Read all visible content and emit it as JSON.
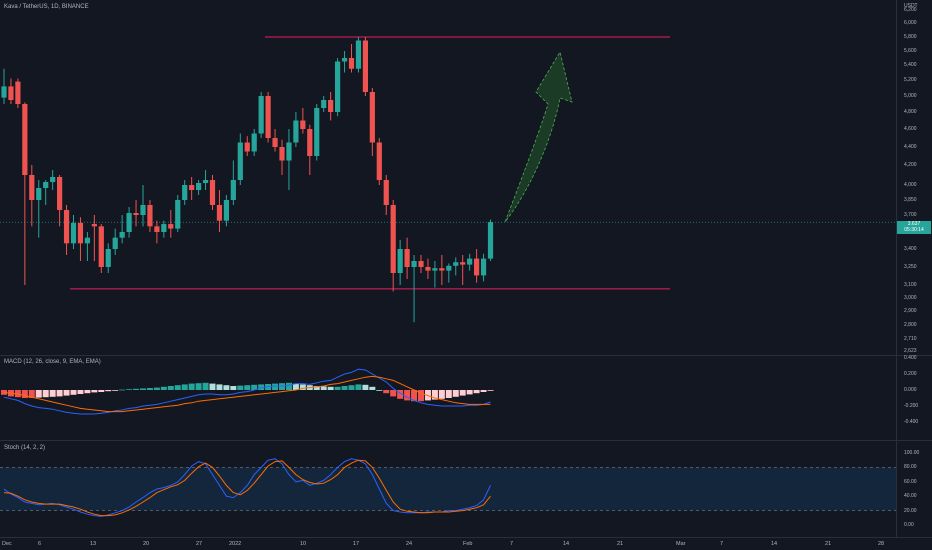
{
  "header": {
    "symbol_title": "Kava / TetherUS, 1D, BINANCE",
    "currency": "USDT"
  },
  "price_axis": {
    "labels": [
      "6,200",
      "6,000",
      "5,800",
      "5,600",
      "5,400",
      "5,200",
      "5,000",
      "4,800",
      "4,600",
      "4,400",
      "4,200",
      "4,000",
      "3,850",
      "3,700",
      "3,550",
      "3,400",
      "3,250",
      "3,100",
      "3,000",
      "2,900",
      "2,800",
      "2,710",
      "2,623"
    ]
  },
  "last_price": {
    "value": "3.637",
    "countdown": "05:30:14"
  },
  "macd": {
    "title": "MACD (12, 26, close, 9, EMA, EMA)",
    "axis_labels": [
      "0.400",
      "0.200",
      "0.000",
      "-0.200",
      "-0.400"
    ]
  },
  "stoch": {
    "title": "Stoch (14, 2, 2)",
    "axis_labels": [
      "100.00",
      "80.00",
      "60.00",
      "40.00",
      "20.00",
      "0.00"
    ]
  },
  "time_axis": {
    "labels": [
      "Dec",
      "6",
      "13",
      "20",
      "27",
      "2022",
      "10",
      "17",
      "24",
      "Feb",
      "7",
      "14",
      "21",
      "Mar",
      "7",
      "14",
      "21",
      "28"
    ]
  },
  "colors": {
    "up": "#26a69a",
    "down": "#ef5350",
    "background": "#131722",
    "resistance_line": "#e91e63",
    "arrow": "#2e7d32"
  },
  "chart_data": {
    "type": "candlestick",
    "title": "Kava / TetherUS, 1D, BINANCE",
    "resistance_level": 5.8,
    "support_level": 3.07,
    "candles": [
      {
        "o": 4.98,
        "h": 5.35,
        "l": 4.9,
        "c": 5.12
      },
      {
        "o": 5.12,
        "h": 5.22,
        "l": 4.9,
        "c": 4.95
      },
      {
        "o": 5.18,
        "h": 5.22,
        "l": 4.85,
        "c": 4.9
      },
      {
        "o": 4.9,
        "h": 4.92,
        "l": 3.1,
        "c": 4.1
      },
      {
        "o": 4.1,
        "h": 4.2,
        "l": 3.6,
        "c": 3.85
      },
      {
        "o": 3.85,
        "h": 4.05,
        "l": 3.5,
        "c": 3.97
      },
      {
        "o": 3.97,
        "h": 4.05,
        "l": 3.8,
        "c": 4.03
      },
      {
        "o": 4.03,
        "h": 4.15,
        "l": 3.95,
        "c": 4.08
      },
      {
        "o": 4.08,
        "h": 4.1,
        "l": 3.6,
        "c": 3.75
      },
      {
        "o": 3.75,
        "h": 3.8,
        "l": 3.35,
        "c": 3.45
      },
      {
        "o": 3.45,
        "h": 3.7,
        "l": 3.4,
        "c": 3.63
      },
      {
        "o": 3.63,
        "h": 3.68,
        "l": 3.3,
        "c": 3.45
      },
      {
        "o": 3.45,
        "h": 3.55,
        "l": 3.3,
        "c": 3.5
      },
      {
        "o": 3.62,
        "h": 3.7,
        "l": 3.3,
        "c": 3.6
      },
      {
        "o": 3.6,
        "h": 3.62,
        "l": 3.2,
        "c": 3.25
      },
      {
        "o": 3.25,
        "h": 3.45,
        "l": 3.2,
        "c": 3.4
      },
      {
        "o": 3.4,
        "h": 3.58,
        "l": 3.35,
        "c": 3.5
      },
      {
        "o": 3.5,
        "h": 3.7,
        "l": 3.45,
        "c": 3.55
      },
      {
        "o": 3.55,
        "h": 3.78,
        "l": 3.5,
        "c": 3.72
      },
      {
        "o": 3.72,
        "h": 3.85,
        "l": 3.6,
        "c": 3.7
      },
      {
        "o": 3.7,
        "h": 4.0,
        "l": 3.6,
        "c": 3.8
      },
      {
        "o": 3.8,
        "h": 3.85,
        "l": 3.55,
        "c": 3.6
      },
      {
        "o": 3.6,
        "h": 3.65,
        "l": 3.45,
        "c": 3.55
      },
      {
        "o": 3.55,
        "h": 3.65,
        "l": 3.5,
        "c": 3.62
      },
      {
        "o": 3.62,
        "h": 3.75,
        "l": 3.5,
        "c": 3.58
      },
      {
        "o": 3.58,
        "h": 3.9,
        "l": 3.55,
        "c": 3.85
      },
      {
        "o": 3.85,
        "h": 4.05,
        "l": 3.8,
        "c": 4.0
      },
      {
        "o": 4.0,
        "h": 4.08,
        "l": 3.85,
        "c": 3.95
      },
      {
        "o": 3.95,
        "h": 4.05,
        "l": 3.9,
        "c": 4.02
      },
      {
        "o": 4.02,
        "h": 4.15,
        "l": 3.95,
        "c": 4.05
      },
      {
        "o": 4.05,
        "h": 4.1,
        "l": 3.75,
        "c": 3.8
      },
      {
        "o": 3.8,
        "h": 3.95,
        "l": 3.55,
        "c": 3.65
      },
      {
        "o": 3.65,
        "h": 3.9,
        "l": 3.6,
        "c": 3.85
      },
      {
        "o": 3.85,
        "h": 4.25,
        "l": 3.8,
        "c": 4.05
      },
      {
        "o": 4.05,
        "h": 4.55,
        "l": 4.0,
        "c": 4.45
      },
      {
        "o": 4.45,
        "h": 4.52,
        "l": 4.3,
        "c": 4.35
      },
      {
        "o": 4.35,
        "h": 4.6,
        "l": 4.3,
        "c": 4.55
      },
      {
        "o": 4.55,
        "h": 5.05,
        "l": 4.5,
        "c": 5.0
      },
      {
        "o": 5.0,
        "h": 5.05,
        "l": 4.45,
        "c": 4.5
      },
      {
        "o": 4.5,
        "h": 4.6,
        "l": 4.35,
        "c": 4.4
      },
      {
        "o": 4.4,
        "h": 4.48,
        "l": 4.1,
        "c": 4.25
      },
      {
        "o": 4.25,
        "h": 4.6,
        "l": 3.95,
        "c": 4.45
      },
      {
        "o": 4.45,
        "h": 4.8,
        "l": 4.4,
        "c": 4.7
      },
      {
        "o": 4.7,
        "h": 4.85,
        "l": 4.55,
        "c": 4.6
      },
      {
        "o": 4.6,
        "h": 4.65,
        "l": 4.1,
        "c": 4.3
      },
      {
        "o": 4.3,
        "h": 4.9,
        "l": 4.25,
        "c": 4.85
      },
      {
        "o": 4.85,
        "h": 5.0,
        "l": 4.8,
        "c": 4.95
      },
      {
        "o": 4.95,
        "h": 5.05,
        "l": 4.7,
        "c": 4.8
      },
      {
        "o": 4.8,
        "h": 5.5,
        "l": 4.75,
        "c": 5.45
      },
      {
        "o": 5.45,
        "h": 5.6,
        "l": 5.3,
        "c": 5.5
      },
      {
        "o": 5.5,
        "h": 5.7,
        "l": 5.3,
        "c": 5.35
      },
      {
        "o": 5.35,
        "h": 5.8,
        "l": 5.3,
        "c": 5.75
      },
      {
        "o": 5.75,
        "h": 5.8,
        "l": 5.0,
        "c": 5.05
      },
      {
        "o": 5.05,
        "h": 5.1,
        "l": 4.3,
        "c": 4.45
      },
      {
        "o": 4.45,
        "h": 4.5,
        "l": 4.0,
        "c": 4.05
      },
      {
        "o": 4.05,
        "h": 4.1,
        "l": 3.7,
        "c": 3.8
      },
      {
        "o": 3.8,
        "h": 3.85,
        "l": 3.05,
        "c": 3.2
      },
      {
        "o": 3.2,
        "h": 3.48,
        "l": 3.1,
        "c": 3.4
      },
      {
        "o": 3.4,
        "h": 3.5,
        "l": 3.15,
        "c": 3.25
      },
      {
        "o": 3.25,
        "h": 3.35,
        "l": 2.82,
        "c": 3.3
      },
      {
        "o": 3.3,
        "h": 3.35,
        "l": 3.2,
        "c": 3.25
      },
      {
        "o": 3.25,
        "h": 3.32,
        "l": 3.15,
        "c": 3.22
      },
      {
        "o": 3.22,
        "h": 3.3,
        "l": 3.08,
        "c": 3.24
      },
      {
        "o": 3.24,
        "h": 3.35,
        "l": 3.1,
        "c": 3.22
      },
      {
        "o": 3.22,
        "h": 3.28,
        "l": 3.12,
        "c": 3.26
      },
      {
        "o": 3.26,
        "h": 3.33,
        "l": 3.18,
        "c": 3.29
      },
      {
        "o": 3.29,
        "h": 3.35,
        "l": 3.1,
        "c": 3.27
      },
      {
        "o": 3.27,
        "h": 3.36,
        "l": 3.22,
        "c": 3.32
      },
      {
        "o": 3.32,
        "h": 3.4,
        "l": 3.12,
        "c": 3.18
      },
      {
        "o": 3.18,
        "h": 3.36,
        "l": 3.13,
        "c": 3.32
      },
      {
        "o": 3.32,
        "h": 3.66,
        "l": 3.3,
        "c": 3.637
      }
    ],
    "macd_histogram": [
      -0.06,
      -0.08,
      -0.09,
      -0.1,
      -0.1,
      -0.095,
      -0.09,
      -0.085,
      -0.08,
      -0.07,
      -0.06,
      -0.05,
      -0.04,
      -0.03,
      -0.025,
      -0.015,
      -0.005,
      0.005,
      0.01,
      0.015,
      0.02,
      0.025,
      0.03,
      0.04,
      0.05,
      0.06,
      0.07,
      0.08,
      0.085,
      0.09,
      0.08,
      0.07,
      0.06,
      0.05,
      0.055,
      0.06,
      0.065,
      0.07,
      0.075,
      0.08,
      0.085,
      0.09,
      0.08,
      0.07,
      0.06,
      0.05,
      0.045,
      0.04,
      0.04,
      0.05,
      0.06,
      0.07,
      0.065,
      0.04,
      0.0,
      -0.04,
      -0.08,
      -0.11,
      -0.13,
      -0.14,
      -0.14,
      -0.13,
      -0.12,
      -0.11,
      -0.1,
      -0.085,
      -0.07,
      -0.055,
      -0.04,
      -0.025,
      -0.01
    ],
    "macd_line": [
      -0.09,
      -0.11,
      -0.13,
      -0.17,
      -0.2,
      -0.22,
      -0.23,
      -0.24,
      -0.26,
      -0.28,
      -0.29,
      -0.3,
      -0.3,
      -0.3,
      -0.29,
      -0.28,
      -0.26,
      -0.25,
      -0.23,
      -0.22,
      -0.2,
      -0.19,
      -0.18,
      -0.16,
      -0.14,
      -0.12,
      -0.1,
      -0.08,
      -0.06,
      -0.05,
      -0.05,
      -0.06,
      -0.06,
      -0.05,
      -0.03,
      -0.02,
      0.0,
      0.03,
      0.04,
      0.05,
      0.05,
      0.06,
      0.08,
      0.08,
      0.07,
      0.09,
      0.11,
      0.12,
      0.16,
      0.2,
      0.22,
      0.26,
      0.25,
      0.2,
      0.15,
      0.1,
      0.02,
      -0.04,
      -0.09,
      -0.13,
      -0.16,
      -0.18,
      -0.19,
      -0.2,
      -0.2,
      -0.2,
      -0.2,
      -0.19,
      -0.19,
      -0.18,
      -0.15
    ],
    "signal_line": [
      -0.03,
      -0.04,
      -0.05,
      -0.07,
      -0.09,
      -0.11,
      -0.13,
      -0.15,
      -0.17,
      -0.19,
      -0.21,
      -0.23,
      -0.24,
      -0.25,
      -0.26,
      -0.27,
      -0.27,
      -0.27,
      -0.26,
      -0.25,
      -0.24,
      -0.23,
      -0.22,
      -0.21,
      -0.2,
      -0.19,
      -0.17,
      -0.16,
      -0.14,
      -0.13,
      -0.12,
      -0.11,
      -0.1,
      -0.09,
      -0.08,
      -0.07,
      -0.06,
      -0.05,
      -0.04,
      -0.03,
      -0.02,
      -0.01,
      0.0,
      0.02,
      0.03,
      0.04,
      0.05,
      0.07,
      0.08,
      0.1,
      0.12,
      0.14,
      0.16,
      0.17,
      0.16,
      0.14,
      0.12,
      0.08,
      0.04,
      0.0,
      -0.04,
      -0.07,
      -0.1,
      -0.12,
      -0.14,
      -0.16,
      -0.17,
      -0.18,
      -0.18,
      -0.18,
      -0.18
    ],
    "stoch_k": [
      50,
      43,
      38,
      32,
      30,
      28,
      29,
      30,
      28,
      25,
      22,
      18,
      15,
      13,
      12,
      14,
      17,
      20,
      25,
      32,
      38,
      45,
      50,
      52,
      55,
      60,
      70,
      82,
      88,
      85,
      70,
      55,
      40,
      38,
      45,
      55,
      70,
      80,
      90,
      92,
      85,
      70,
      60,
      62,
      55,
      58,
      62,
      70,
      80,
      88,
      92,
      90,
      85,
      70,
      50,
      30,
      20,
      18,
      17,
      17,
      17,
      18,
      18,
      18,
      20,
      20,
      22,
      24,
      27,
      35,
      55
    ],
    "stoch_d": [
      45,
      44,
      40,
      35,
      32,
      30,
      29,
      29,
      29,
      27,
      25,
      22,
      18,
      15,
      13,
      13,
      14,
      17,
      21,
      26,
      32,
      38,
      45,
      49,
      53,
      56,
      62,
      72,
      81,
      86,
      80,
      68,
      55,
      45,
      42,
      48,
      58,
      70,
      82,
      88,
      89,
      80,
      70,
      63,
      59,
      57,
      58,
      63,
      70,
      80,
      86,
      90,
      89,
      80,
      65,
      48,
      32,
      22,
      19,
      18,
      17,
      17,
      18,
      18,
      18,
      19,
      20,
      22,
      24,
      28,
      40
    ]
  }
}
